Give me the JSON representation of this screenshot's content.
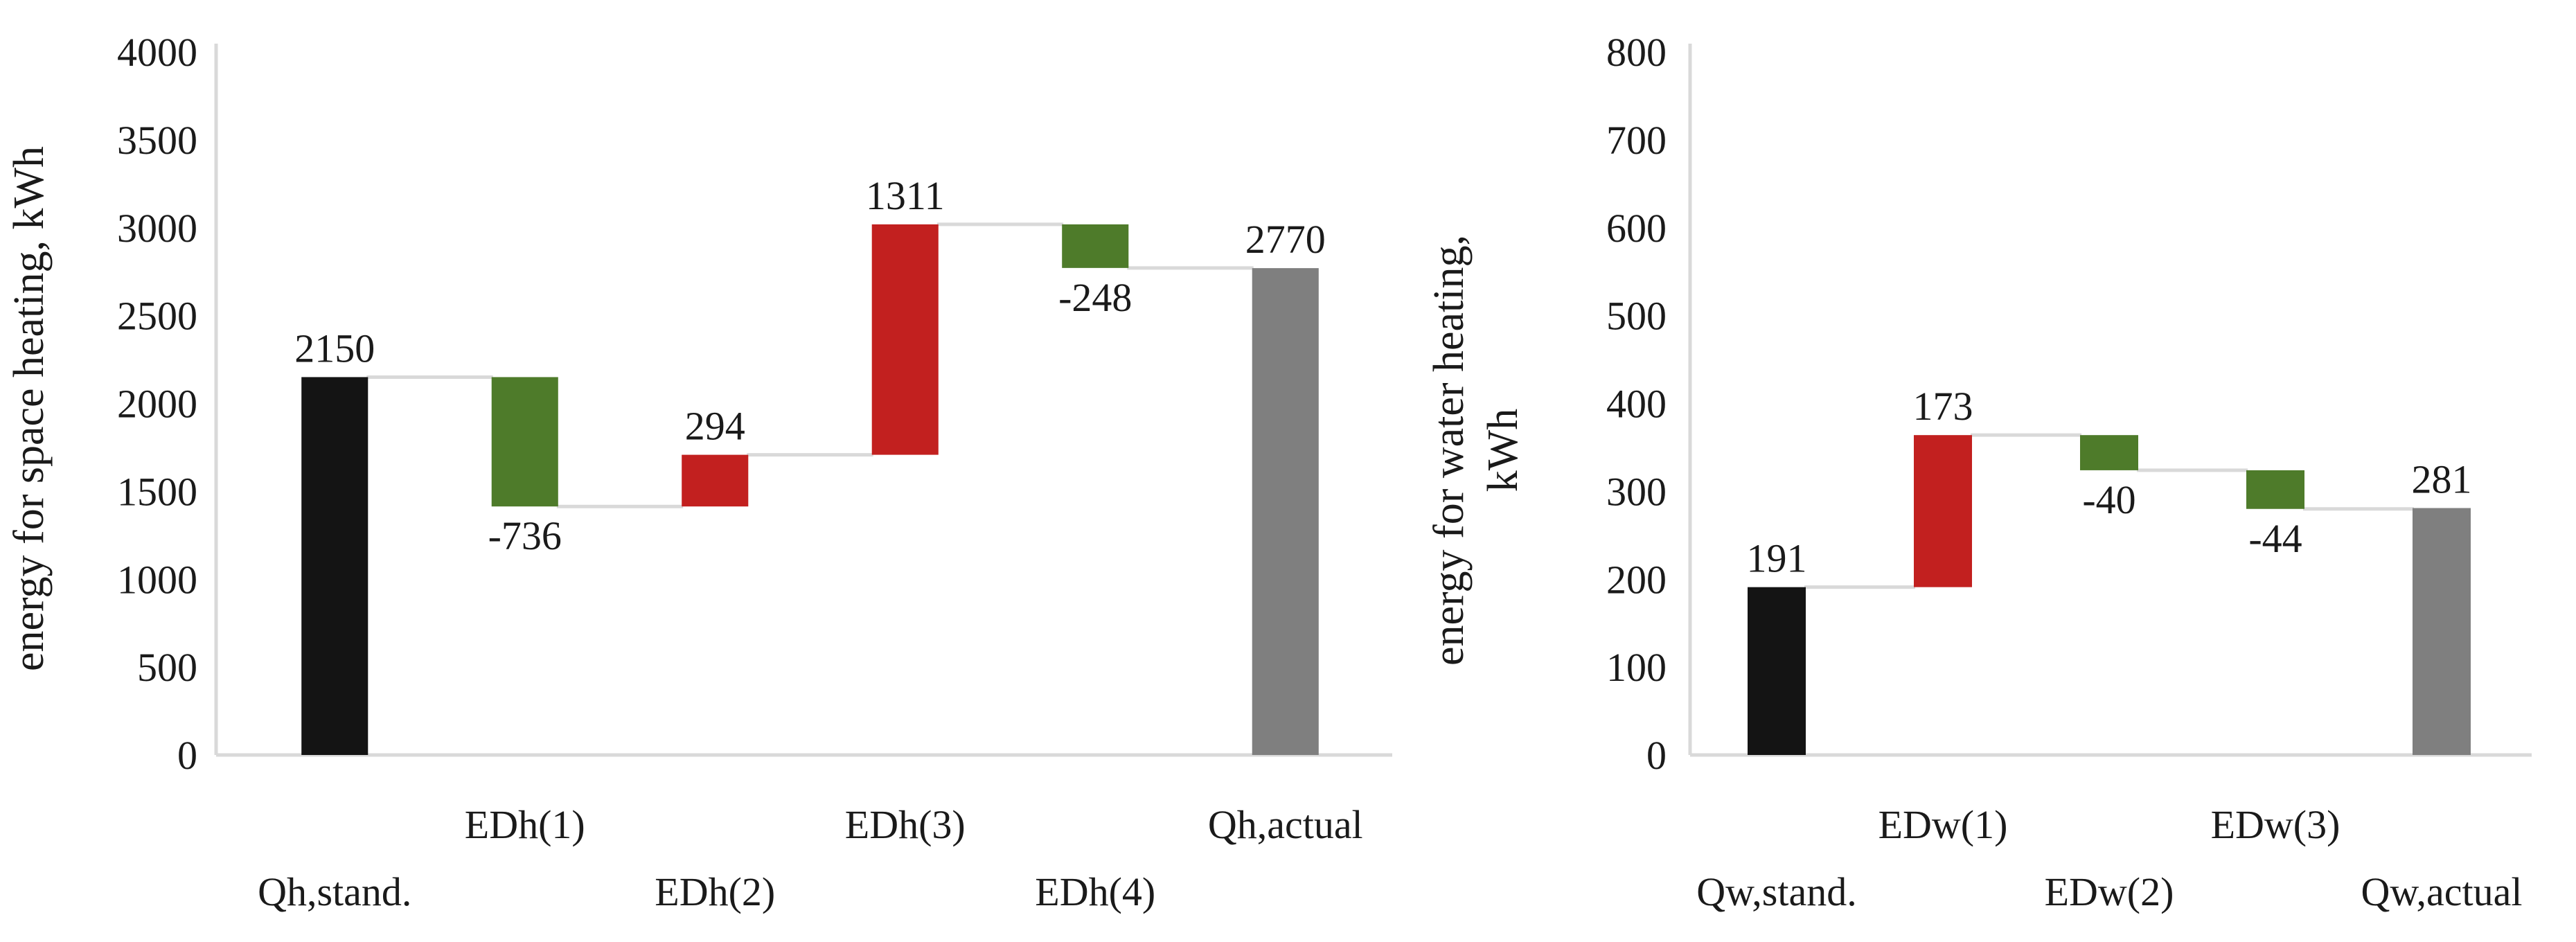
{
  "figure": {
    "background": "#ffffff",
    "text_color": "#1a1a1a",
    "axis_line_color": "#d9d9d9",
    "connector_color": "#d9d9d9"
  },
  "colors": {
    "baseline_total": "#141414",
    "final_total": "#7f7f7f",
    "increase": "#c2201f",
    "decrease": "#4e7b2a"
  },
  "chart_data": [
    {
      "type": "bar",
      "subtype": "waterfall",
      "panel": "left",
      "title": "",
      "ylabel": "energy for space heating, kWh",
      "ylabel_lines": [
        "energy for space heating, kWh"
      ],
      "xlabel": "",
      "ylim": [
        0,
        4000
      ],
      "ytick_step": 500,
      "ytick_labels": [
        "0",
        "500",
        "1000",
        "1500",
        "2000",
        "2500",
        "3000",
        "3500",
        "4000"
      ],
      "grid": false,
      "legend": "none",
      "categories": [
        "Qh,stand.",
        "EDh(1)",
        "EDh(2)",
        "EDh(3)",
        "EDh(4)",
        "Qh,actual"
      ],
      "bars": [
        {
          "category": "Qh,stand.",
          "kind": "absolute",
          "value": 2150,
          "label": "2150",
          "label_position": "above",
          "color_role": "baseline_total"
        },
        {
          "category": "EDh(1)",
          "kind": "delta",
          "value": -736,
          "label": "-736",
          "label_position": "below",
          "color_role": "decrease"
        },
        {
          "category": "EDh(2)",
          "kind": "delta",
          "value": 294,
          "label": "294",
          "label_position": "above",
          "color_role": "increase"
        },
        {
          "category": "EDh(3)",
          "kind": "delta",
          "value": 1311,
          "label": "1311",
          "label_position": "above",
          "color_role": "increase"
        },
        {
          "category": "EDh(4)",
          "kind": "delta",
          "value": -248,
          "label": "-248",
          "label_position": "below",
          "color_role": "decrease"
        },
        {
          "category": "Qh,actual",
          "kind": "absolute",
          "value": 2770,
          "label": "2770",
          "label_position": "above",
          "color_role": "final_total"
        }
      ]
    },
    {
      "type": "bar",
      "subtype": "waterfall",
      "panel": "right",
      "title": "",
      "ylabel": "energy for water heating, kWh",
      "ylabel_lines": [
        "energy for water heating,",
        "kWh"
      ],
      "xlabel": "",
      "ylim": [
        0,
        800
      ],
      "ytick_step": 100,
      "ytick_labels": [
        "0",
        "100",
        "200",
        "300",
        "400",
        "500",
        "600",
        "700",
        "800"
      ],
      "grid": false,
      "legend": "none",
      "categories": [
        "Qw,stand.",
        "EDw(1)",
        "EDw(2)",
        "EDw(3)",
        "Qw,actual"
      ],
      "bars": [
        {
          "category": "Qw,stand.",
          "kind": "absolute",
          "value": 191,
          "label": "191",
          "label_position": "above",
          "color_role": "baseline_total"
        },
        {
          "category": "EDw(1)",
          "kind": "delta",
          "value": 173,
          "label": "173",
          "label_position": "above",
          "color_role": "increase"
        },
        {
          "category": "EDw(2)",
          "kind": "delta",
          "value": -40,
          "label": "-40",
          "label_position": "below",
          "color_role": "decrease"
        },
        {
          "category": "EDw(3)",
          "kind": "delta",
          "value": -44,
          "label": "-44",
          "label_position": "below",
          "color_role": "decrease"
        },
        {
          "category": "Qw,actual",
          "kind": "absolute",
          "value": 281,
          "label": "281",
          "label_position": "above",
          "color_role": "final_total"
        }
      ]
    }
  ]
}
